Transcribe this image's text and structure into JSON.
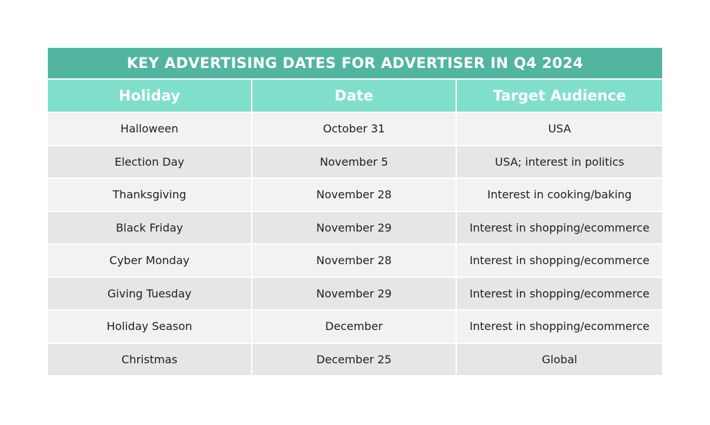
{
  "table": {
    "title": "KEY ADVERTISING DATES FOR ADVERTISER IN Q4 2024",
    "headers": [
      "Holiday",
      "Date",
      "Target Audience"
    ],
    "rows": [
      [
        "Halloween",
        "October 31",
        "USA"
      ],
      [
        "Election Day",
        "November 5",
        "USA; interest in politics"
      ],
      [
        "Thanksgiving",
        "November 28",
        "Interest in cooking/baking"
      ],
      [
        "Black Friday",
        "November 29",
        "Interest in shopping/ecommerce"
      ],
      [
        "Cyber Monday",
        "November 28",
        "Interest in shopping/ecommerce"
      ],
      [
        "Giving Tuesday",
        "November 29",
        "Interest in shopping/ecommerce"
      ],
      [
        "Holiday Season",
        "December",
        "Interest in shopping/ecommerce"
      ],
      [
        "Christmas",
        "December 25",
        "Global"
      ]
    ]
  },
  "colors": {
    "title_bg": "#52b59f",
    "header_bg": "#7fdfca",
    "row_light": "#f2f2f2",
    "row_dark": "#e6e6e6"
  }
}
